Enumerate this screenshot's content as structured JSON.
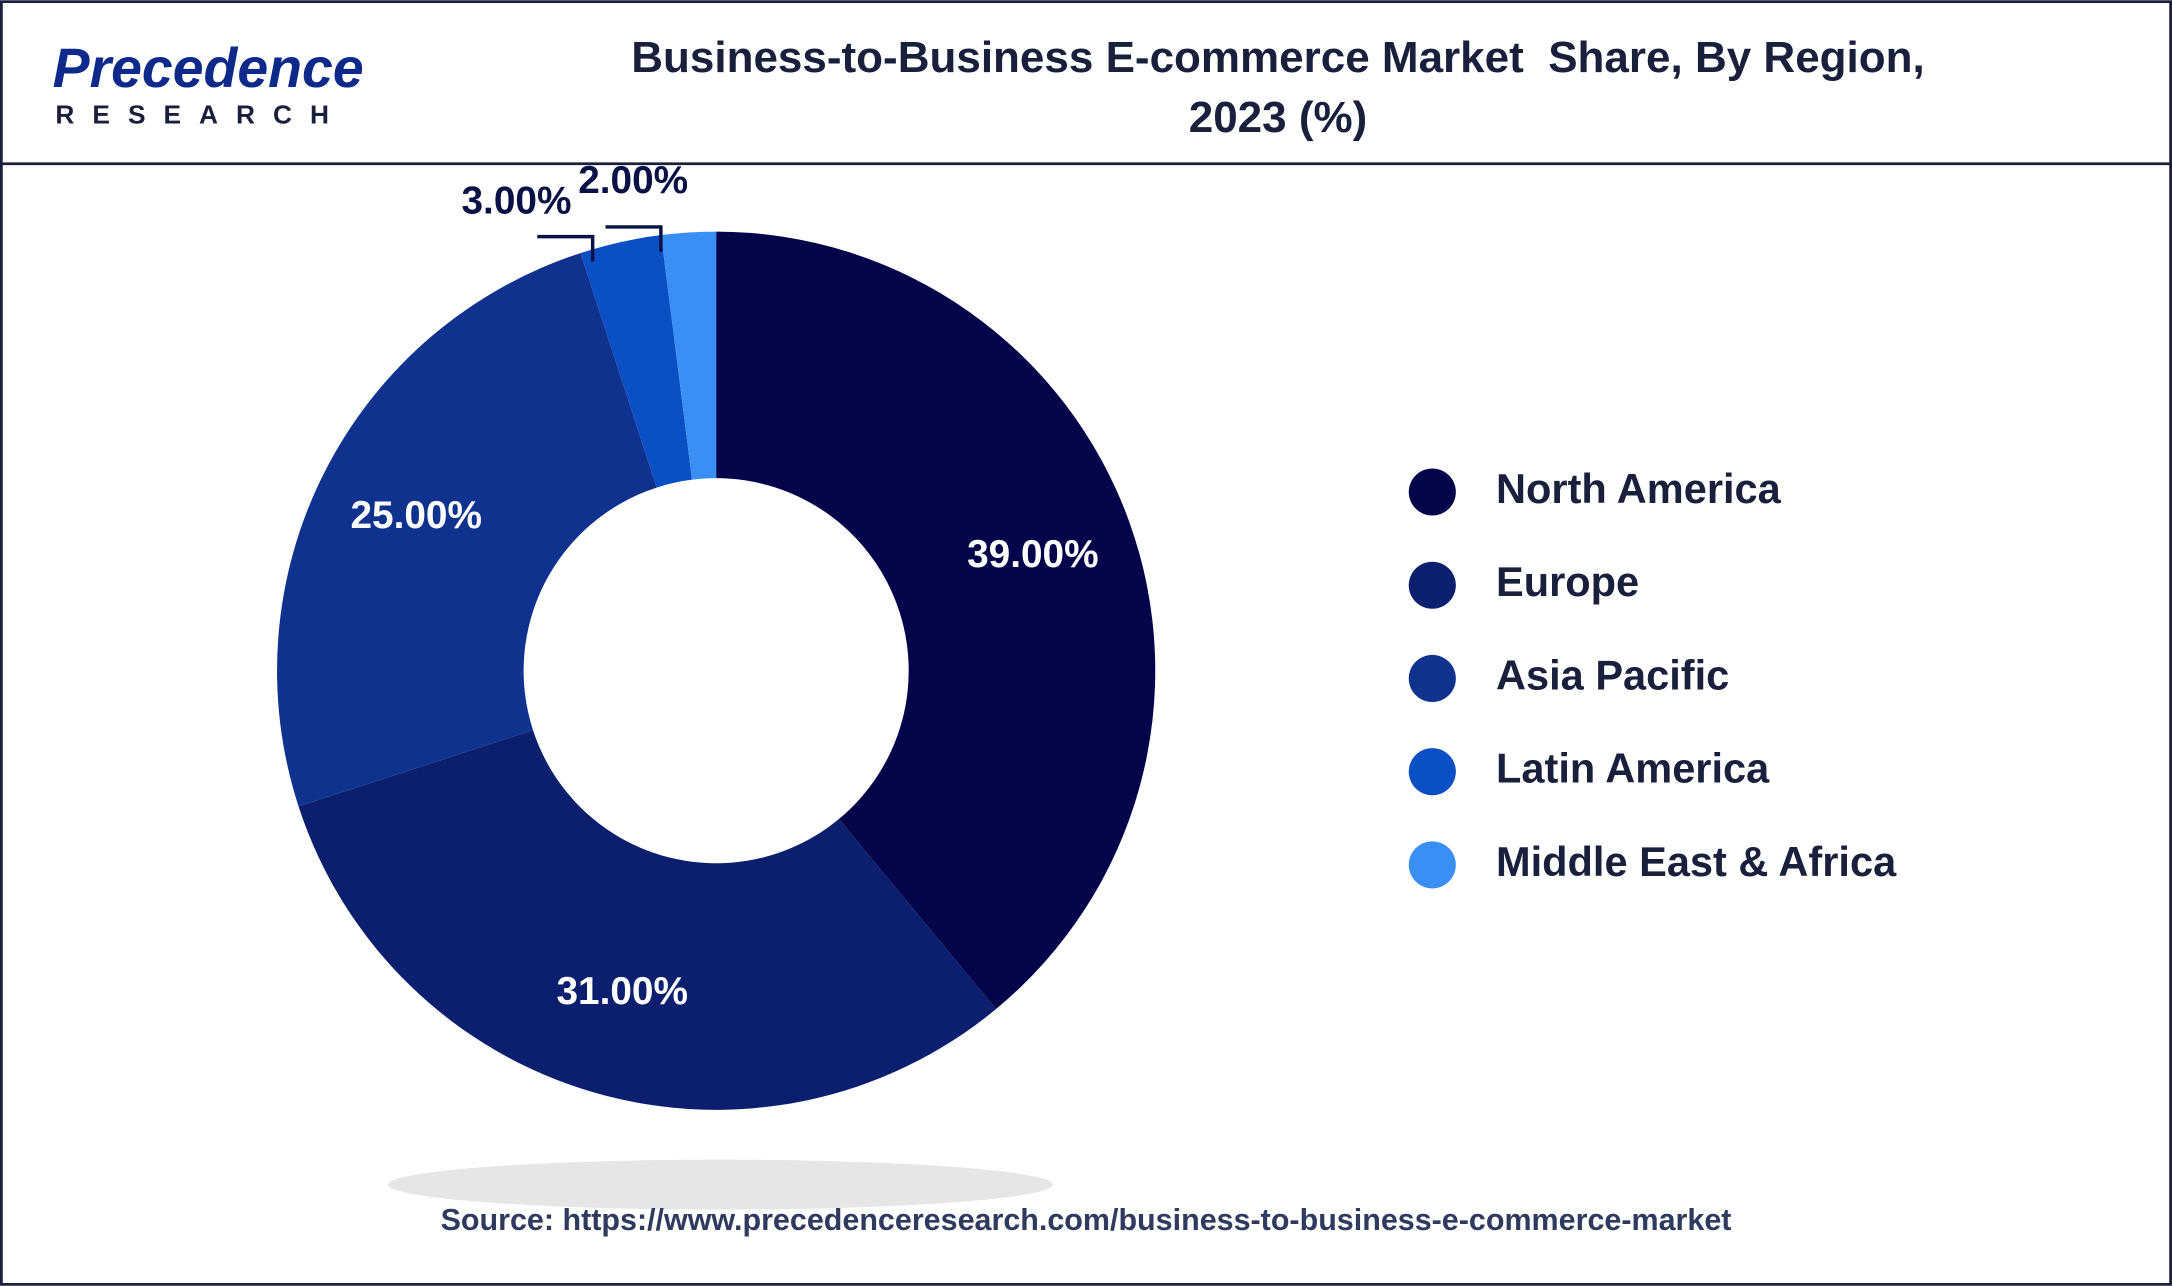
{
  "logo": {
    "name": "Precedence",
    "tagline": "RESEARCH"
  },
  "source": "Source: https://www.precedenceresearch.com/business-to-business-e-commerce-market",
  "chart_data": {
    "type": "donut",
    "title": "Business-to-Business E-commerce Market  Share, By Region, 2023 (%)",
    "categories": [
      "North America",
      "Europe",
      "Asia Pacific",
      "Latin America",
      "Middle East & Africa"
    ],
    "values": [
      39,
      31,
      25,
      3,
      2
    ],
    "value_labels": [
      "39.00%",
      "31.00%",
      "25.00%",
      "3.00%",
      "2.00%"
    ],
    "colors": [
      "#03044a",
      "#0b1f6e",
      "#10328f",
      "#0a4fc4",
      "#3a8ff5"
    ],
    "legend": "right"
  }
}
